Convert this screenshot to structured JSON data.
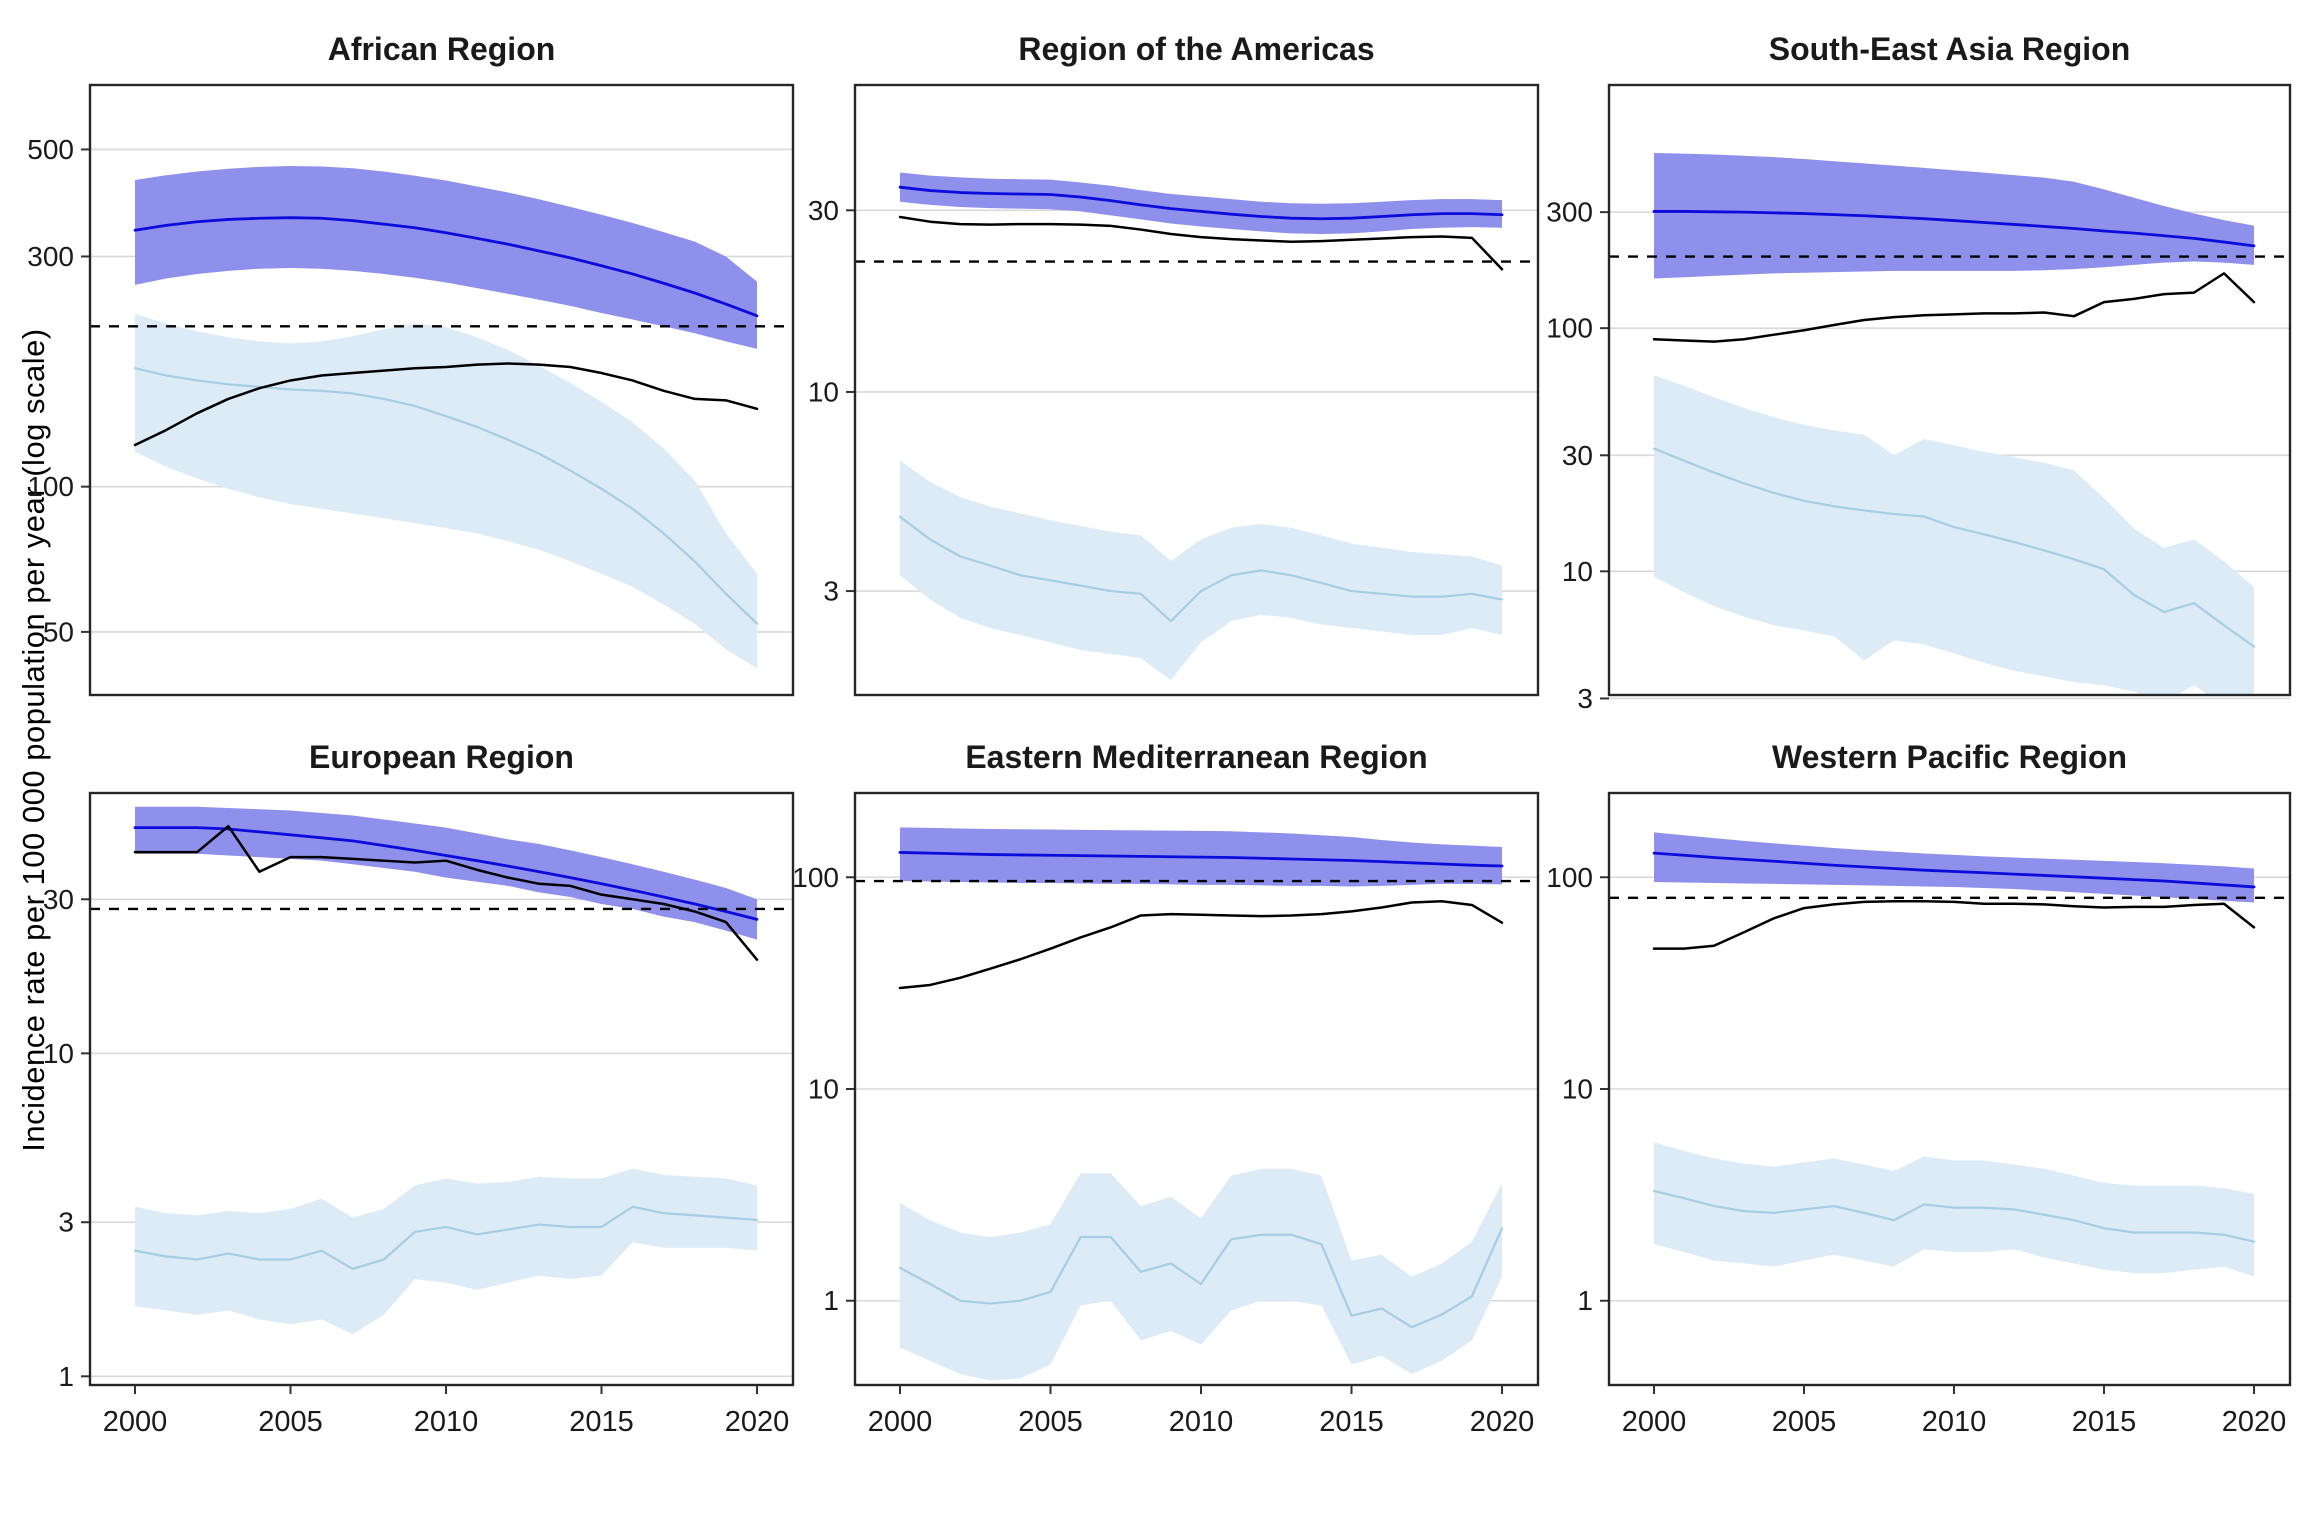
{
  "figure": {
    "y_axis_label": "Incidence rate per 100 000 population per year (log scale)",
    "x_tick_labels": [
      "2000",
      "2005",
      "2010",
      "2015",
      "2020"
    ],
    "colors": {
      "estimate_line": "#0b0bdb",
      "estimate_band": "#8f8fec",
      "black_line": "#000000",
      "lightblue_line": "#a5cde4",
      "lightblue_band": "#ddebf7",
      "dashed_line": "#000000",
      "gridline": "#d9d9d9",
      "panel_border": "#262626",
      "text": "#1a1a1a"
    }
  },
  "chart_data": [
    {
      "type": "line",
      "title": "African Region",
      "ylim": [
        37,
        680
      ],
      "yticks": [
        500,
        300,
        100,
        50
      ],
      "dashed_y": 215,
      "x_start": 2000,
      "x_end": 2020,
      "series": [
        {
          "name": "estimate_blue",
          "values": [
            340,
            348,
            354,
            358,
            360,
            361,
            360,
            356,
            350,
            344,
            336,
            327,
            318,
            308,
            298,
            287,
            276,
            264,
            252,
            239,
            226
          ],
          "band_low": [
            262,
            270,
            276,
            280,
            283,
            284,
            283,
            280,
            276,
            271,
            265,
            258,
            251,
            244,
            237,
            229,
            222,
            215,
            208,
            200,
            193
          ],
          "band_high": [
            432,
            442,
            450,
            456,
            460,
            462,
            461,
            457,
            450,
            441,
            431,
            419,
            407,
            394,
            380,
            366,
            352,
            337,
            322,
            300,
            266
          ]
        },
        {
          "name": "black_notifications",
          "values": [
            122,
            131,
            142,
            152,
            160,
            166,
            170,
            172,
            174,
            176,
            177,
            179,
            180,
            179,
            177,
            172,
            166,
            158,
            152,
            151,
            145
          ]
        },
        {
          "name": "light_blue",
          "values": [
            176,
            170,
            166,
            163,
            161,
            159,
            158,
            156,
            152,
            147,
            140,
            133,
            125,
            117,
            108,
            99,
            90,
            80,
            70,
            60,
            52
          ],
          "band_low": [
            118,
            110,
            104,
            99,
            95,
            92,
            90,
            88,
            86,
            84,
            82,
            80,
            77,
            74,
            70,
            66,
            62,
            57,
            52,
            46,
            42
          ],
          "band_high": [
            228,
            218,
            210,
            204,
            200,
            198,
            200,
            205,
            212,
            218,
            214,
            204,
            192,
            178,
            164,
            150,
            136,
            120,
            103,
            80,
            66
          ]
        }
      ]
    },
    {
      "type": "line",
      "title": "Region of the Americas",
      "ylim": [
        1.6,
        64
      ],
      "yticks": [
        30,
        10,
        3
      ],
      "dashed_y": 22,
      "x_start": 2000,
      "x_end": 2020,
      "series": [
        {
          "name": "estimate_blue",
          "values": [
            34.5,
            33.8,
            33.4,
            33.2,
            33.1,
            33.0,
            32.5,
            31.8,
            31.0,
            30.3,
            29.8,
            29.3,
            28.9,
            28.6,
            28.5,
            28.6,
            28.9,
            29.2,
            29.4,
            29.4,
            29.2
          ],
          "band_low": [
            31.6,
            31.0,
            30.6,
            30.4,
            30.3,
            30.2,
            29.8,
            29.1,
            28.4,
            27.7,
            27.2,
            26.8,
            26.4,
            26.1,
            26.0,
            26.1,
            26.4,
            26.8,
            27.0,
            27.1,
            27.0
          ],
          "band_high": [
            37.7,
            37.0,
            36.6,
            36.3,
            36.2,
            36.1,
            35.5,
            34.8,
            33.9,
            33.1,
            32.6,
            32.1,
            31.6,
            31.3,
            31.2,
            31.3,
            31.6,
            31.9,
            32.1,
            32.1,
            31.9
          ]
        },
        {
          "name": "black_notifications",
          "values": [
            28.8,
            28.0,
            27.6,
            27.5,
            27.6,
            27.6,
            27.5,
            27.3,
            26.7,
            26.0,
            25.5,
            25.2,
            25.0,
            24.8,
            24.9,
            25.1,
            25.3,
            25.5,
            25.6,
            25.4,
            21.0
          ]
        },
        {
          "name": "light_blue",
          "values": [
            4.7,
            4.1,
            3.7,
            3.5,
            3.3,
            3.2,
            3.1,
            3.0,
            2.95,
            2.5,
            3.0,
            3.3,
            3.4,
            3.3,
            3.15,
            3.0,
            2.95,
            2.9,
            2.9,
            2.95,
            2.85
          ],
          "band_low": [
            3.3,
            2.85,
            2.55,
            2.4,
            2.3,
            2.2,
            2.1,
            2.05,
            2.0,
            1.75,
            2.2,
            2.5,
            2.6,
            2.55,
            2.45,
            2.4,
            2.35,
            2.3,
            2.3,
            2.4,
            2.3
          ],
          "band_high": [
            6.6,
            5.8,
            5.3,
            5.0,
            4.8,
            4.6,
            4.45,
            4.3,
            4.2,
            3.6,
            4.1,
            4.4,
            4.5,
            4.4,
            4.2,
            4.0,
            3.9,
            3.8,
            3.75,
            3.7,
            3.5
          ]
        }
      ]
    },
    {
      "type": "line",
      "title": "South-East Asia Region",
      "ylim": [
        3.1,
        1000
      ],
      "yticks": [
        300,
        100,
        30,
        10,
        3
      ],
      "dashed_y": 197,
      "x_start": 2000,
      "x_end": 2020,
      "series": [
        {
          "name": "estimate_blue",
          "values": [
            302,
            302,
            301,
            300,
            298,
            296,
            293,
            290,
            286,
            282,
            277,
            272,
            267,
            262,
            257,
            251,
            246,
            240,
            234,
            226,
            218
          ],
          "band_low": [
            160,
            162,
            164,
            166,
            168,
            169,
            170,
            171,
            172,
            172,
            172,
            172,
            172,
            173,
            175,
            178,
            182,
            186,
            188,
            186,
            182
          ],
          "band_high": [
            525,
            522,
            518,
            512,
            505,
            496,
            486,
            476,
            466,
            456,
            446,
            436,
            426,
            416,
            400,
            372,
            344,
            318,
            296,
            278,
            264
          ]
        },
        {
          "name": "black_notifications",
          "values": [
            90,
            89,
            88,
            90,
            94,
            98,
            103,
            108,
            111,
            113,
            114,
            115,
            115,
            116,
            112,
            128,
            132,
            138,
            140,
            168,
            128
          ]
        },
        {
          "name": "light_blue",
          "values": [
            32,
            28.5,
            25.5,
            23,
            21,
            19.5,
            18.5,
            17.8,
            17.2,
            16.8,
            15.2,
            14.2,
            13.2,
            12.2,
            11.2,
            10.2,
            8.0,
            6.8,
            7.4,
            6.0,
            4.9
          ],
          "band_low": [
            9.5,
            8.2,
            7.2,
            6.5,
            6.0,
            5.7,
            5.4,
            4.3,
            5.2,
            5.0,
            4.6,
            4.2,
            3.9,
            3.7,
            3.5,
            3.4,
            3.2,
            2.9,
            3.4,
            2.8,
            2.2
          ],
          "band_high": [
            64,
            58,
            52,
            47,
            43,
            40,
            38,
            36.5,
            30,
            35,
            33,
            31,
            29.5,
            28,
            26,
            20,
            15,
            12.5,
            13.5,
            11,
            8.6
          ]
        }
      ]
    },
    {
      "type": "line",
      "title": "European Region",
      "ylim": [
        0.94,
        64
      ],
      "yticks": [
        30,
        10,
        3,
        1
      ],
      "dashed_y": 28,
      "x_start": 2000,
      "x_end": 2020,
      "series": [
        {
          "name": "estimate_blue",
          "values": [
            50,
            50,
            50,
            49.5,
            48.5,
            47.5,
            46.5,
            45.5,
            44,
            42.5,
            41,
            39.5,
            38,
            36.5,
            35,
            33.5,
            32,
            30.5,
            29,
            27.5,
            26
          ],
          "band_low": [
            41.5,
            41.5,
            41.5,
            41,
            40.5,
            40,
            39.5,
            38.5,
            37.5,
            36.5,
            35,
            34,
            33,
            31.5,
            30.5,
            29,
            28,
            26.5,
            25.5,
            24,
            22.5
          ],
          "band_high": [
            58,
            58,
            58,
            57.5,
            57,
            56.5,
            55.5,
            54.5,
            53,
            51.5,
            50,
            48,
            46,
            44.5,
            42.5,
            40.5,
            38.5,
            36.5,
            34.5,
            32.5,
            30
          ]
        },
        {
          "name": "black_notifications",
          "values": [
            42,
            42,
            42,
            50.5,
            36.5,
            40.5,
            40.5,
            40,
            39.5,
            39,
            39.5,
            37,
            35,
            33.5,
            33,
            31,
            30,
            29,
            27.5,
            25.5,
            19.5
          ]
        },
        {
          "name": "light_blue",
          "values": [
            2.45,
            2.35,
            2.3,
            2.4,
            2.3,
            2.3,
            2.45,
            2.15,
            2.3,
            2.8,
            2.9,
            2.75,
            2.85,
            2.95,
            2.9,
            2.9,
            3.35,
            3.2,
            3.15,
            3.1,
            3.05
          ],
          "band_low": [
            1.65,
            1.6,
            1.55,
            1.6,
            1.5,
            1.45,
            1.5,
            1.35,
            1.55,
            2.0,
            1.95,
            1.85,
            1.95,
            2.05,
            2.0,
            2.05,
            2.6,
            2.5,
            2.5,
            2.5,
            2.45
          ],
          "band_high": [
            3.35,
            3.2,
            3.15,
            3.25,
            3.2,
            3.3,
            3.55,
            3.1,
            3.3,
            3.9,
            4.1,
            3.95,
            4.0,
            4.15,
            4.1,
            4.1,
            4.4,
            4.2,
            4.15,
            4.1,
            3.9
          ]
        }
      ]
    },
    {
      "type": "line",
      "title": "Eastern Mediterranean Region",
      "ylim": [
        0.4,
        250
      ],
      "yticks": [
        100,
        10,
        1
      ],
      "dashed_y": 96,
      "x_start": 2000,
      "x_end": 2020,
      "series": [
        {
          "name": "estimate_blue",
          "values": [
            131,
            130,
            129,
            128,
            127.5,
            127,
            126.5,
            126,
            125.5,
            125,
            124.5,
            124,
            123,
            122,
            121,
            120,
            118.5,
            117,
            115.5,
            114,
            113
          ],
          "band_low": [
            96,
            95.5,
            95,
            94.5,
            94,
            94,
            93.5,
            93,
            93,
            92.5,
            92,
            92,
            91.5,
            91,
            91,
            90.5,
            91,
            92,
            93,
            93,
            92.5
          ],
          "band_high": [
            172,
            171,
            170,
            169,
            168.5,
            168,
            167.5,
            167,
            166.5,
            166,
            165.5,
            165,
            163,
            161,
            158,
            155,
            150,
            146,
            143,
            141,
            139
          ]
        },
        {
          "name": "black_notifications",
          "values": [
            30,
            31,
            33.5,
            37,
            41,
            46,
            52,
            58,
            66,
            67,
            66.5,
            66,
            65.5,
            66,
            67,
            69,
            72,
            76,
            77,
            74,
            61
          ]
        },
        {
          "name": "light_blue",
          "values": [
            1.43,
            1.2,
            1.0,
            0.97,
            1.0,
            1.1,
            2.0,
            2.0,
            1.37,
            1.5,
            1.2,
            1.95,
            2.05,
            2.05,
            1.85,
            0.85,
            0.92,
            0.75,
            0.86,
            1.05,
            2.2
          ],
          "band_low": [
            0.6,
            0.52,
            0.45,
            0.42,
            0.43,
            0.5,
            0.95,
            1.0,
            0.65,
            0.72,
            0.62,
            0.9,
            1.0,
            1.0,
            0.95,
            0.5,
            0.55,
            0.45,
            0.52,
            0.65,
            1.3
          ],
          "band_high": [
            2.9,
            2.4,
            2.1,
            2.0,
            2.1,
            2.3,
            4.0,
            4.0,
            2.8,
            3.1,
            2.45,
            3.9,
            4.2,
            4.2,
            3.9,
            1.55,
            1.65,
            1.3,
            1.5,
            1.9,
            3.6
          ]
        }
      ]
    },
    {
      "type": "line",
      "title": "Western Pacific Region",
      "ylim": [
        0.4,
        250
      ],
      "yticks": [
        100,
        10,
        1
      ],
      "dashed_y": 80,
      "x_start": 2000,
      "x_end": 2020,
      "series": [
        {
          "name": "estimate_blue",
          "values": [
            130,
            127,
            124,
            121.5,
            119,
            116.5,
            114,
            112,
            110,
            108,
            106.5,
            105,
            103.5,
            102,
            100.5,
            99,
            97.5,
            96,
            94,
            92,
            90
          ],
          "band_low": [
            95,
            94.5,
            94,
            93.5,
            93,
            92.5,
            92,
            91.5,
            91,
            90.5,
            90,
            89,
            88,
            86.5,
            85,
            83.5,
            82,
            80.5,
            79,
            77.5,
            76
          ],
          "band_high": [
            163,
            158,
            153,
            148.5,
            144.5,
            141,
            137.5,
            134.5,
            132,
            129.5,
            127.5,
            125.5,
            124,
            122.5,
            121,
            119.5,
            118,
            116.5,
            114.5,
            112.5,
            110
          ]
        },
        {
          "name": "black_notifications",
          "values": [
            46,
            46,
            47.5,
            55,
            64,
            71.5,
            74.5,
            76.5,
            77,
            77,
            76.5,
            75,
            75,
            74.5,
            73,
            72,
            72.5,
            72.5,
            74,
            75,
            58
          ]
        },
        {
          "name": "light_blue",
          "values": [
            3.3,
            3.05,
            2.8,
            2.65,
            2.6,
            2.7,
            2.8,
            2.6,
            2.4,
            2.85,
            2.75,
            2.75,
            2.7,
            2.55,
            2.4,
            2.2,
            2.1,
            2.1,
            2.1,
            2.05,
            1.9
          ],
          "band_low": [
            1.85,
            1.7,
            1.55,
            1.5,
            1.45,
            1.55,
            1.65,
            1.55,
            1.45,
            1.75,
            1.7,
            1.7,
            1.75,
            1.6,
            1.5,
            1.4,
            1.35,
            1.35,
            1.4,
            1.45,
            1.3
          ],
          "band_high": [
            5.6,
            5.1,
            4.7,
            4.45,
            4.3,
            4.5,
            4.7,
            4.4,
            4.1,
            4.8,
            4.6,
            4.6,
            4.4,
            4.2,
            3.9,
            3.6,
            3.5,
            3.5,
            3.5,
            3.4,
            3.2
          ]
        }
      ]
    }
  ]
}
